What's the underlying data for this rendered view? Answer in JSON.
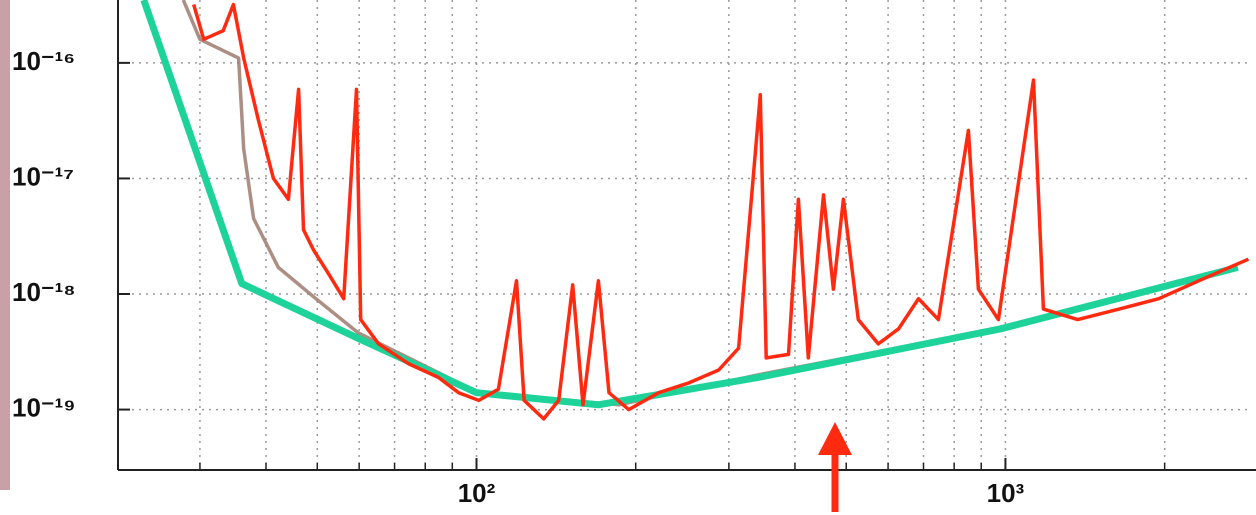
{
  "chart_data": {
    "type": "line",
    "log_x": true,
    "log_y": true,
    "grid": true,
    "xlim": [
      21,
      2900
    ],
    "ylim": [
      3e-20,
      3.5e-16
    ],
    "xticks": [
      {
        "value": 100,
        "label": "10²"
      },
      {
        "value": 1000,
        "label": "10³"
      }
    ],
    "xminorticks": [
      30,
      40,
      50,
      60,
      70,
      80,
      90,
      200,
      300,
      400,
      500,
      600,
      700,
      800,
      900,
      2000
    ],
    "yticks": [
      {
        "value": 1e-19,
        "label": "10⁻¹⁹"
      },
      {
        "value": 1e-18,
        "label": "10⁻¹⁸"
      },
      {
        "value": 1e-17,
        "label": "10⁻¹⁷"
      },
      {
        "value": 1e-16,
        "label": "10⁻¹⁶"
      }
    ],
    "series": [
      {
        "color": "#9c7b6e",
        "x": [
          27.9,
          30.0,
          35.5,
          36.3,
          37.9,
          42.2,
          49.7,
          59.8,
          101,
          186,
          341,
          970,
          2750
        ],
        "values": [
          3.5e-16,
          1.6e-16,
          1.1e-16,
          1.8e-17,
          4.5e-18,
          1.7e-18,
          9.1e-19,
          4.6e-19,
          1.4e-19,
          1.1e-19,
          2e-19,
          5e-19,
          1.7e-18
        ]
      },
      {
        "color": "#1ed39a",
        "x": [
          23.5,
          36,
          60,
          100,
          170,
          341,
          980,
          2750
        ],
        "values": [
          3.5e-16,
          1.23e-18,
          4.1e-19,
          1.4e-19,
          1.1e-19,
          1.9e-19,
          5e-19,
          1.7e-18
        ]
      },
      {
        "color": "#ff2a10",
        "x": [
          29.2,
          30.5,
          33.2,
          34.7,
          36.3,
          38.7,
          41.3,
          44.1,
          46.1,
          47.1,
          49.2,
          52.5,
          56.1,
          59.3,
          60.4,
          65.3,
          74.3,
          84.7,
          92.5,
          101,
          110,
          119,
          123,
          134,
          143,
          152,
          159,
          170,
          178,
          194,
          221,
          252,
          287,
          313,
          344,
          353,
          389,
          406,
          424,
          453,
          473,
          494,
          527,
          575,
          628,
          685,
          747,
          851,
          889,
          970,
          1130,
          1180,
          1370,
          1640,
          1950,
          2320,
          2880
        ],
        "values": [
          3.2e-16,
          1.6e-16,
          1.9e-16,
          3.2e-16,
          1.1e-16,
          3.2e-17,
          1e-17,
          6.6e-18,
          5.9e-17,
          3.6e-18,
          2.4e-18,
          1.5e-18,
          9.1e-19,
          5.9e-17,
          6e-19,
          3.7e-19,
          2.5e-19,
          1.9e-19,
          1.4e-19,
          1.2e-19,
          1.5e-19,
          1.3e-18,
          1.2e-19,
          8.3e-20,
          1.2e-19,
          1.2e-18,
          1.1e-19,
          1.3e-18,
          1.4e-19,
          1e-19,
          1.4e-19,
          1.7e-19,
          2.2e-19,
          3.4e-19,
          5.3e-17,
          2.8e-19,
          3e-19,
          6.6e-18,
          2.8e-19,
          7.2e-18,
          1.1e-18,
          6.6e-18,
          6e-19,
          3.7e-19,
          5e-19,
          9.1e-19,
          6e-19,
          2.6e-17,
          1.1e-18,
          6e-19,
          7.1e-17,
          7.4e-19,
          6e-19,
          7.4e-19,
          9.1e-19,
          1.3e-18,
          2e-18
        ]
      }
    ]
  }
}
